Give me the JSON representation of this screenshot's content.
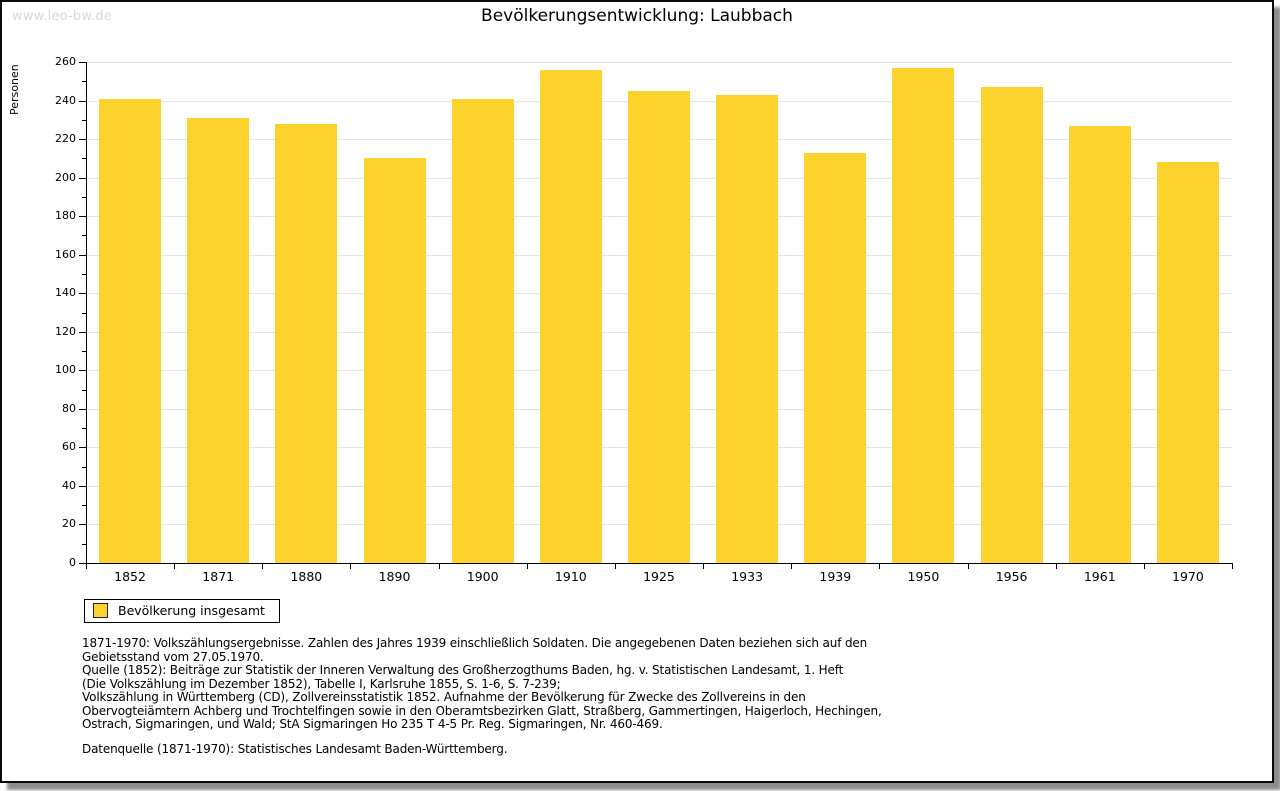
{
  "window": {
    "watermark": "www.leo-bw.de"
  },
  "chart_data": {
    "type": "bar",
    "title": "Bevölkerungsentwicklung: Laubbach",
    "xlabel": "",
    "ylabel": "Personen",
    "categories": [
      "1852",
      "1871",
      "1880",
      "1890",
      "1900",
      "1910",
      "1925",
      "1933",
      "1939",
      "1950",
      "1956",
      "1961",
      "1970"
    ],
    "values": [
      241,
      231,
      228,
      210,
      241,
      256,
      245,
      243,
      213,
      257,
      247,
      227,
      208
    ],
    "ylim": [
      0,
      260
    ],
    "ytick_step": 20,
    "yminor_step": 10,
    "grid": "horizontal",
    "legend_position": "bottom-left",
    "bar_color": "#FCD32D",
    "gridline_color": "#e3e3e3"
  },
  "legend": {
    "label": "Bevölkerung insgesamt",
    "swatch_color": "#FCD32D"
  },
  "footnotes": {
    "lines": [
      "1871-1970: Volkszählungsergebnisse. Zahlen des Jahres 1939 einschließlich Soldaten. Die angegebenen Daten beziehen sich auf den",
      "Gebietsstand vom 27.05.1970.",
      "Quelle (1852): Beiträge zur Statistik der Inneren Verwaltung des Großherzogthums Baden, hg. v. Statistischen Landesamt, 1. Heft",
      "(Die Volkszählung im Dezember 1852), Tabelle I, Karlsruhe 1855, S. 1-6, S. 7-239;",
      "Volkszählung in Württemberg (CD), Zollvereinsstatistik 1852. Aufnahme der Bevölkerung für Zwecke des Zollvereins in den",
      "Obervogteiämtern Achberg und Trochtelfingen sowie in den Oberamtsbezirken Glatt, Straßberg, Gammertingen, Haigerloch, Hechingen,",
      "Ostrach, Sigmaringen, und Wald; StA Sigmaringen Ho 235 T 4-5 Pr. Reg. Sigmaringen, Nr. 460-469."
    ],
    "datasource": "Datenquelle (1871-1970): Statistisches Landesamt Baden-Württemberg."
  }
}
